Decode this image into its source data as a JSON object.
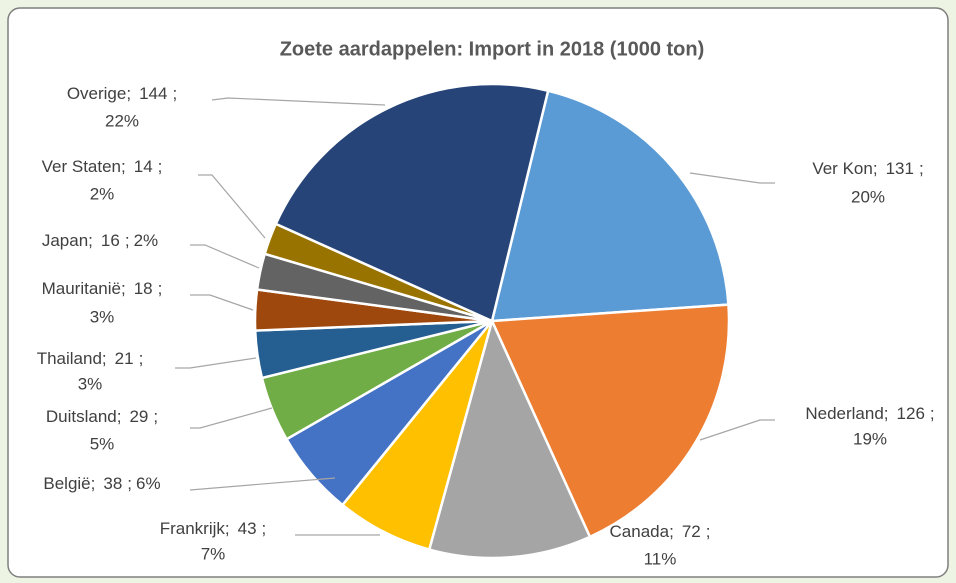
{
  "chart_data": {
    "type": "pie",
    "title": "Zoete aardappelen: Import in 2018 (1000 ton)",
    "label_separator": ";",
    "categories": [
      "Ver Kon",
      "Nederland",
      "Canada",
      "Frankrijk",
      "België",
      "Duitsland",
      "Thailand",
      "Mauritanië",
      "Japan",
      "Ver Staten",
      "Overige"
    ],
    "values": [
      131,
      126,
      72,
      43,
      38,
      29,
      21,
      18,
      16,
      14,
      144
    ],
    "percentages": [
      "20%",
      "19%",
      "11%",
      "7%",
      "6%",
      "5%",
      "3%",
      "3%",
      "2%",
      "2%",
      "22%"
    ],
    "colors": [
      "#5b9bd5",
      "#ed7d31",
      "#a5a5a5",
      "#ffc000",
      "#4472c4",
      "#70ad47",
      "#255e91",
      "#9e480e",
      "#636363",
      "#997300",
      "#264478"
    ]
  }
}
